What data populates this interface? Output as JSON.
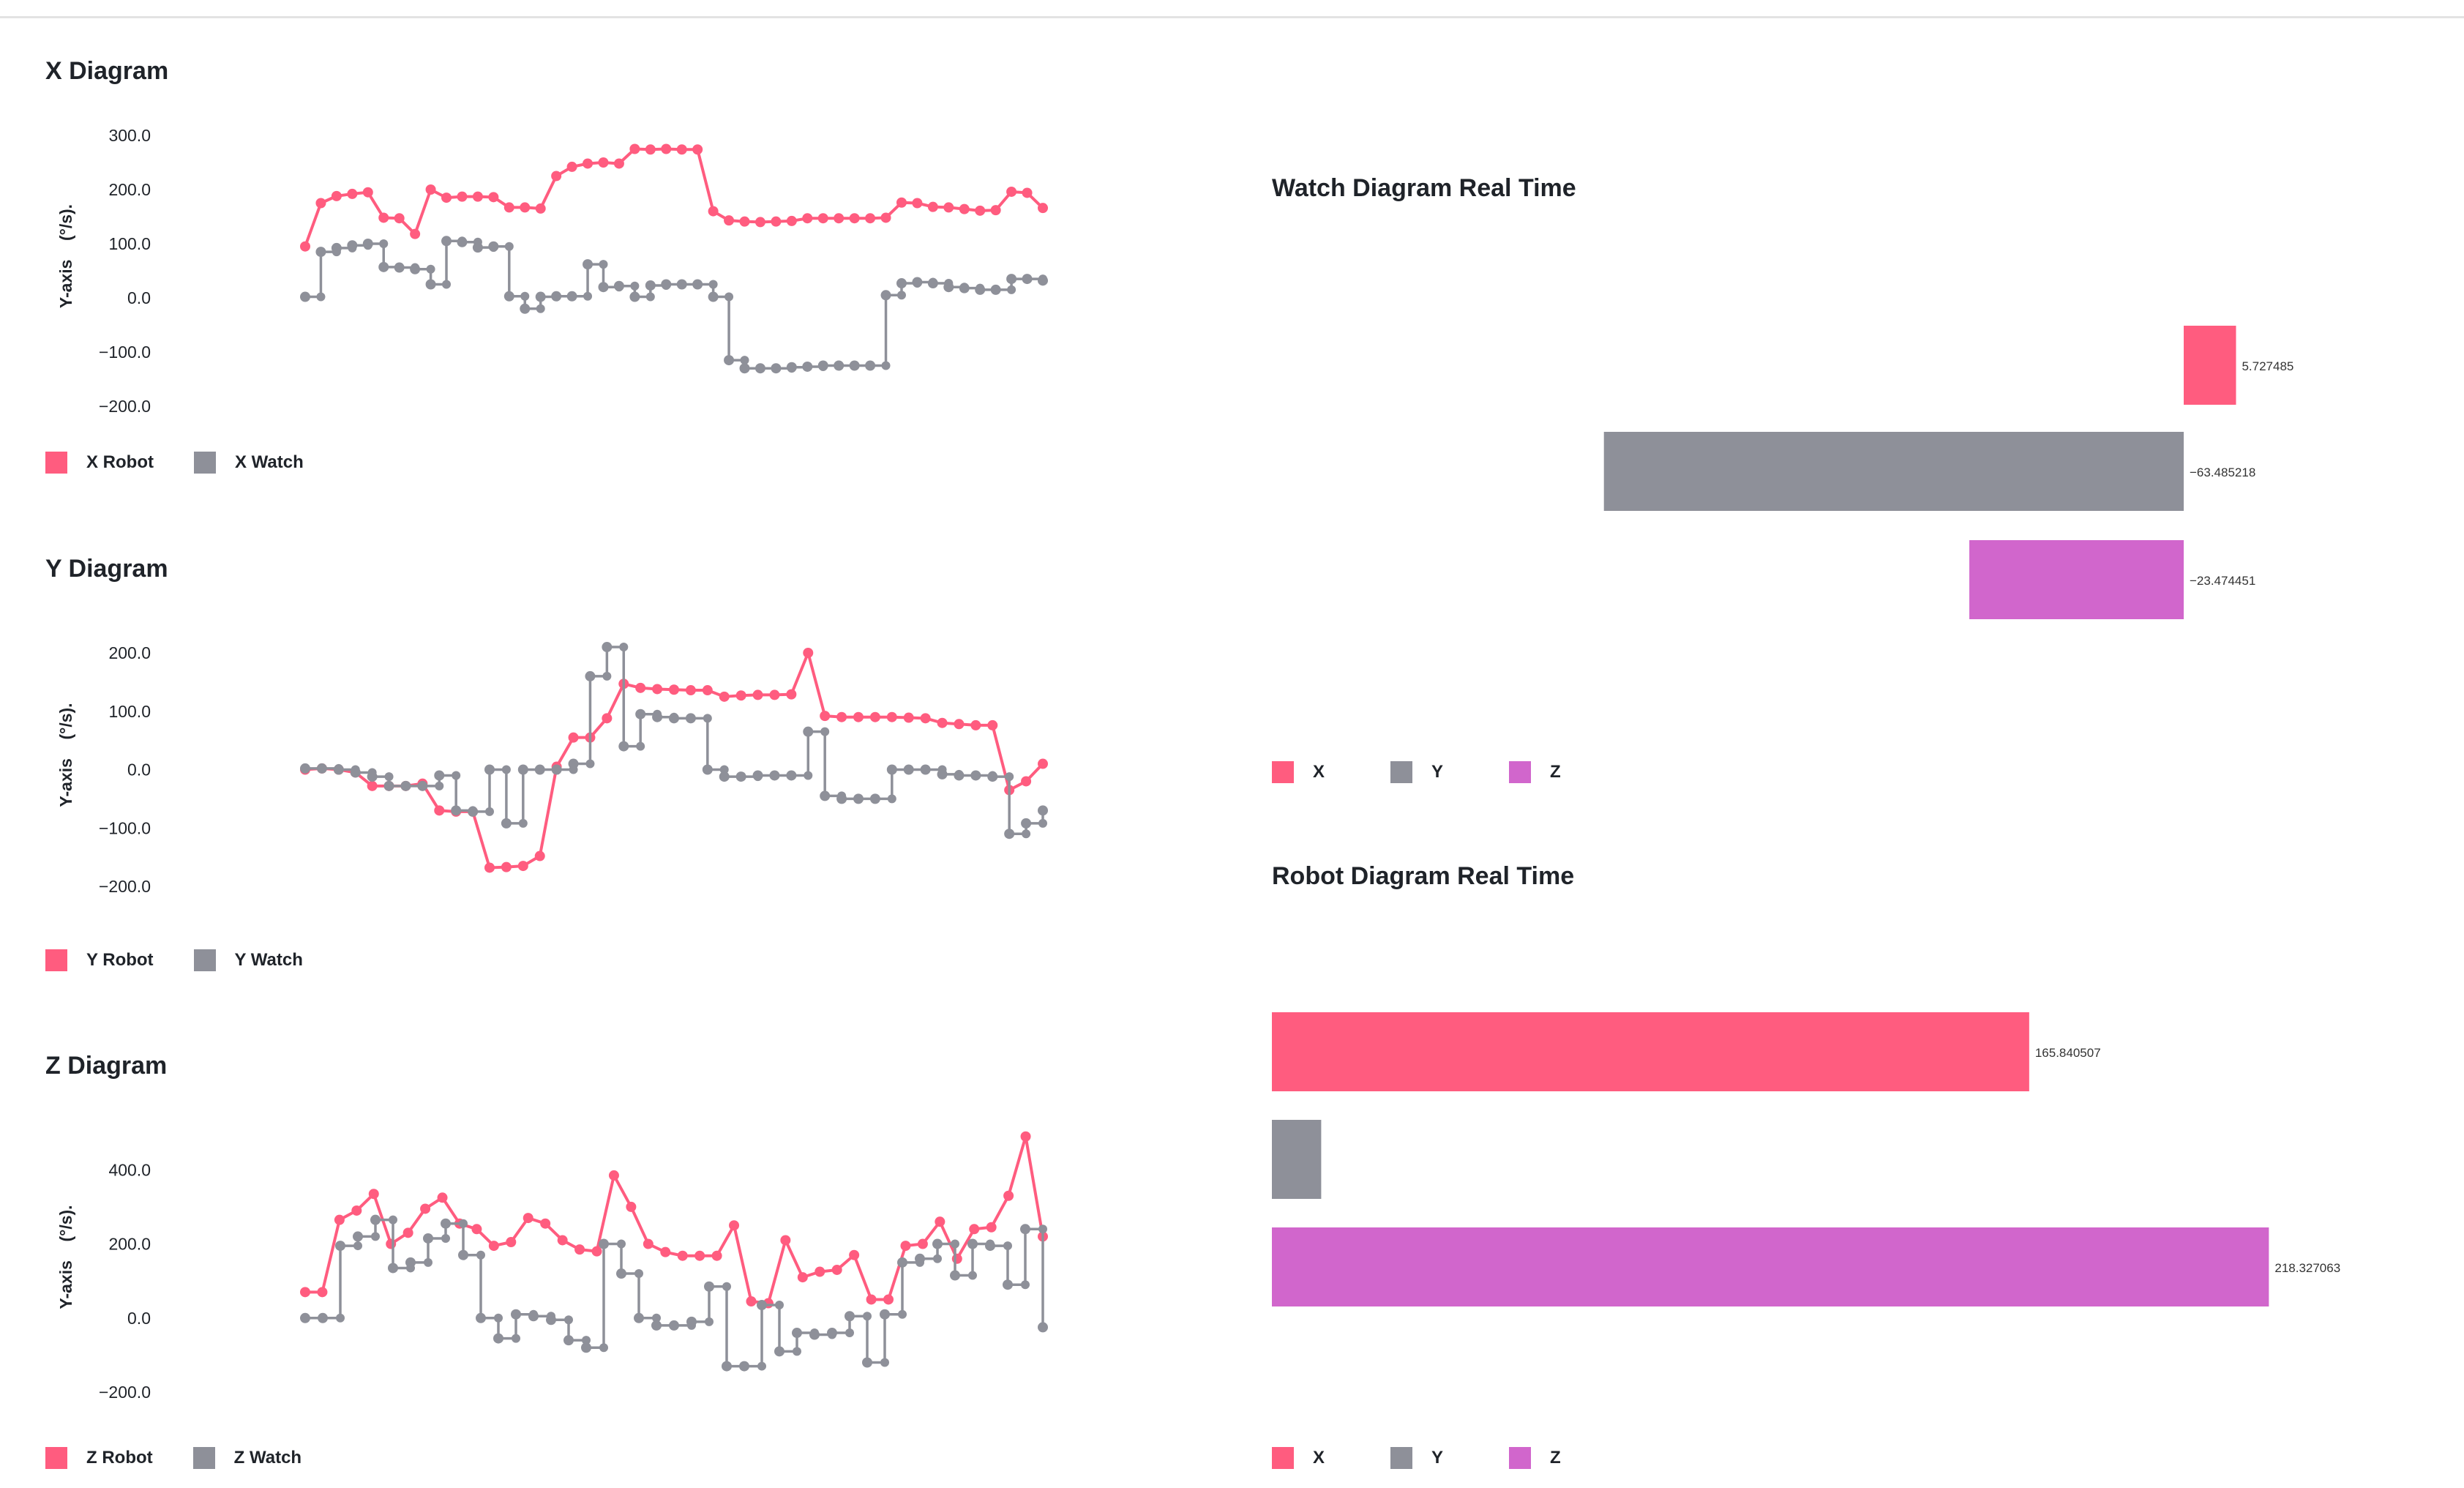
{
  "chart_data": [
    {
      "type": "line",
      "title": "X Diagram",
      "ylabel": "Y-axis    (°/s).",
      "ylim": [
        -200,
        300
      ],
      "yticks": [
        "300.0",
        "200.0",
        "100.0",
        "0.0",
        "−100.0",
        "−200.0"
      ],
      "yticks_values": [
        300,
        200,
        100,
        0,
        -100,
        -200
      ],
      "step_series": "X Watch",
      "series": [
        {
          "name": "X Robot",
          "color": "#ff5c7f",
          "values": [
            95,
            175,
            188,
            192,
            195,
            148,
            147,
            118,
            200,
            185,
            187,
            187,
            186,
            167,
            167,
            165,
            225,
            242,
            248,
            250,
            248,
            275,
            274,
            275,
            274,
            274,
            160,
            143,
            141,
            140,
            141,
            142,
            147,
            147,
            147,
            147,
            147,
            148,
            176,
            175,
            168,
            167,
            164,
            161,
            162,
            196,
            194,
            166
          ]
        },
        {
          "name": "X Watch",
          "color": "#8e9099",
          "values": [
            2,
            85,
            92,
            97,
            100,
            57,
            56,
            53,
            25,
            105,
            103,
            93,
            95,
            3,
            -20,
            2,
            3,
            3,
            62,
            20,
            22,
            2,
            23,
            25,
            25,
            25,
            2,
            -115,
            -130,
            -130,
            -130,
            -128,
            -127,
            -125,
            -125,
            -125,
            -125,
            5,
            27,
            29,
            27,
            20,
            18,
            15,
            15,
            35,
            35,
            32
          ]
        }
      ]
    },
    {
      "type": "line",
      "title": "Y Diagram",
      "ylabel": "Y-axis    (°/s).",
      "ylim": [
        -200,
        200
      ],
      "yticks": [
        "200.0",
        "100.0",
        "0.0",
        "−100.0",
        "−200.0"
      ],
      "yticks_values": [
        200,
        100,
        0,
        -100,
        -200
      ],
      "step_series": "Y Watch",
      "series": [
        {
          "name": "Y Robot",
          "color": "#ff5c7f",
          "values": [
            0,
            2,
            0,
            -5,
            -28,
            -28,
            -28,
            -24,
            -70,
            -72,
            -72,
            -168,
            -167,
            -165,
            -148,
            5,
            55,
            55,
            88,
            147,
            140,
            138,
            137,
            136,
            136,
            125,
            127,
            128,
            128,
            129,
            200,
            92,
            90,
            90,
            90,
            90,
            89,
            88,
            80,
            78,
            76,
            76,
            -35,
            -20,
            10
          ]
        },
        {
          "name": "Y Watch",
          "color": "#8e9099",
          "values": [
            2,
            2,
            0,
            -5,
            -12,
            -28,
            -28,
            -28,
            -10,
            -70,
            -72,
            0,
            -92,
            0,
            0,
            0,
            10,
            160,
            210,
            40,
            95,
            90,
            88,
            88,
            0,
            -12,
            -12,
            -10,
            -10,
            -10,
            65,
            -45,
            -50,
            -50,
            -50,
            0,
            0,
            0,
            -8,
            -10,
            -10,
            -12,
            -110,
            -92,
            -70
          ]
        }
      ]
    },
    {
      "type": "line",
      "title": "Z Diagram",
      "ylabel": "Y-axis    (°/s).",
      "ylim": [
        -200,
        450
      ],
      "yticks": [
        "400.0",
        "200.0",
        "0.0",
        "−200.0"
      ],
      "yticks_values": [
        400,
        200,
        0,
        -200
      ],
      "step_series": "Z Watch",
      "series": [
        {
          "name": "Z Robot",
          "color": "#ff5c7f",
          "values": [
            70,
            70,
            265,
            290,
            335,
            200,
            230,
            295,
            325,
            255,
            240,
            195,
            205,
            270,
            255,
            210,
            185,
            180,
            385,
            300,
            200,
            178,
            168,
            168,
            168,
            250,
            45,
            40,
            210,
            110,
            125,
            130,
            170,
            50,
            50,
            195,
            200,
            260,
            160,
            240,
            245,
            330,
            490,
            220
          ]
        },
        {
          "name": "Z Watch",
          "color": "#8e9099",
          "values": [
            0,
            0,
            195,
            220,
            265,
            135,
            150,
            215,
            255,
            170,
            0,
            -55,
            10,
            5,
            -5,
            -60,
            -80,
            200,
            120,
            0,
            -20,
            -20,
            -10,
            85,
            -130,
            -130,
            35,
            -90,
            -40,
            -45,
            -40,
            5,
            -120,
            10,
            150,
            160,
            200,
            115,
            200,
            195,
            90,
            240,
            -25
          ]
        }
      ]
    },
    {
      "type": "bar",
      "orientation": "horizontal",
      "title": "Watch Diagram Real Time",
      "categories": [
        "X",
        "Y",
        "Z"
      ],
      "colors": [
        "#ff5c7f",
        "#8e9099",
        "#d166cc"
      ],
      "values": [
        5.727485,
        -63.485218,
        -23.474451
      ],
      "value_labels": [
        "5.727485",
        "−63.485218",
        "−23.474451"
      ],
      "xlim": [
        -100,
        25
      ]
    },
    {
      "type": "bar",
      "orientation": "horizontal",
      "title": "Robot Diagram Real Time",
      "categories": [
        "X",
        "Y",
        "Z"
      ],
      "colors": [
        "#ff5c7f",
        "#8e9099",
        "#d166cc"
      ],
      "values": [
        165.840507,
        10.8,
        218.327063
      ],
      "value_labels": [
        "165.840507",
        "",
        "218.327063"
      ],
      "xlim": [
        0,
        250
      ]
    }
  ],
  "legends": {
    "x": [
      {
        "label": "X Robot",
        "color": "#ff5c7f"
      },
      {
        "label": "X Watch",
        "color": "#8e9099"
      }
    ],
    "y": [
      {
        "label": "Y Robot",
        "color": "#ff5c7f"
      },
      {
        "label": "Y Watch",
        "color": "#8e9099"
      }
    ],
    "z": [
      {
        "label": "Z Robot",
        "color": "#ff5c7f"
      },
      {
        "label": "Z Watch",
        "color": "#8e9099"
      }
    ],
    "watch": [
      {
        "label": "X",
        "color": "#ff5c7f"
      },
      {
        "label": "Y",
        "color": "#8e9099"
      },
      {
        "label": "Z",
        "color": "#d166cc"
      }
    ],
    "robot": [
      {
        "label": "X",
        "color": "#ff5c7f"
      },
      {
        "label": "Y",
        "color": "#8e9099"
      },
      {
        "label": "Z",
        "color": "#d166cc"
      }
    ]
  }
}
